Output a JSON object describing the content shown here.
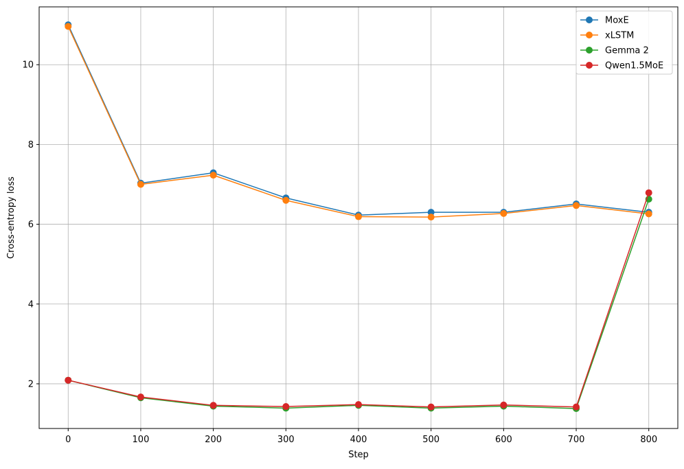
{
  "chart_data": {
    "type": "line",
    "title": "",
    "xlabel": "Step",
    "ylabel": "Cross-entropy loss",
    "x": [
      0,
      100,
      200,
      300,
      400,
      500,
      600,
      700,
      800
    ],
    "xlim": [
      -40,
      840
    ],
    "ylim": [
      0.88,
      11.45
    ],
    "xticks": [
      "0",
      "100",
      "200",
      "300",
      "400",
      "500",
      "600",
      "700",
      "800"
    ],
    "yticks": [
      "2",
      "4",
      "6",
      "8",
      "10"
    ],
    "grid": true,
    "legend_position": "top-right",
    "series": [
      {
        "name": "MoxE",
        "color": "#1f77b4",
        "values": [
          11.0,
          7.03,
          7.29,
          6.66,
          6.23,
          6.3,
          6.3,
          6.51,
          6.3
        ]
      },
      {
        "name": "xLSTM",
        "color": "#ff7f0e",
        "values": [
          10.96,
          7.0,
          7.23,
          6.6,
          6.19,
          6.18,
          6.27,
          6.47,
          6.26
        ]
      },
      {
        "name": "Gemma 2",
        "color": "#2ca02c",
        "values": [
          2.09,
          1.65,
          1.44,
          1.39,
          1.46,
          1.39,
          1.44,
          1.38,
          6.63
        ]
      },
      {
        "name": "Qwen1.5MoE",
        "color": "#d62728",
        "values": [
          2.09,
          1.67,
          1.46,
          1.43,
          1.48,
          1.42,
          1.47,
          1.42,
          6.79
        ]
      }
    ]
  }
}
